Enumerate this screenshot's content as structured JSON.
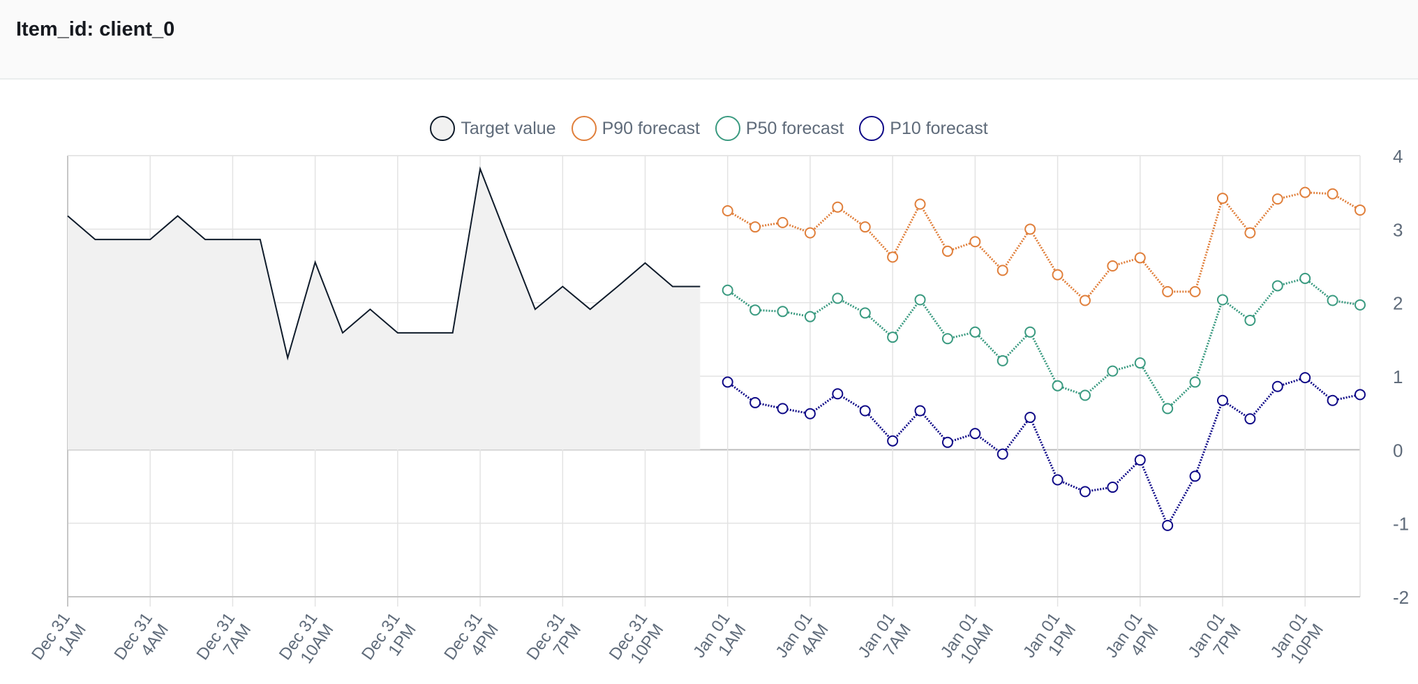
{
  "header": {
    "title": "Item_id: client_0"
  },
  "colors": {
    "target": "#0f1b2a",
    "target_fill": "#f1f1f1",
    "p90": "#e07f3b",
    "p50": "#3a9a80",
    "p10": "#0f0a87",
    "grid": "#e3e3e3",
    "axis": "#c6c6c6"
  },
  "chart_data": {
    "type": "line",
    "title": "",
    "xlabel": "",
    "ylabel": "",
    "ylim": [
      -2,
      4
    ],
    "yticks": [
      4,
      3,
      2,
      1,
      0,
      -1,
      -2
    ],
    "y_axis_position": "right",
    "grid": true,
    "legend_position": "top",
    "x_hours_start": "Dec 31 1AM",
    "xtick_labels": [
      [
        "Dec 31",
        "1AM"
      ],
      [
        "Dec 31",
        "4AM"
      ],
      [
        "Dec 31",
        "7AM"
      ],
      [
        "Dec 31",
        "10AM"
      ],
      [
        "Dec 31",
        "1PM"
      ],
      [
        "Dec 31",
        "4PM"
      ],
      [
        "Dec 31",
        "7PM"
      ],
      [
        "Dec 31",
        "10PM"
      ],
      [
        "Jan 01",
        "1AM"
      ],
      [
        "Jan 01",
        "4AM"
      ],
      [
        "Jan 01",
        "7AM"
      ],
      [
        "Jan 01",
        "10AM"
      ],
      [
        "Jan 01",
        "1PM"
      ],
      [
        "Jan 01",
        "4PM"
      ],
      [
        "Jan 01",
        "7PM"
      ],
      [
        "Jan 01",
        "10PM"
      ]
    ],
    "series": [
      {
        "name": "Target value",
        "style": "area",
        "start": "Dec 31 1AM",
        "values": [
          3.18,
          2.86,
          2.86,
          2.86,
          3.18,
          2.86,
          2.86,
          2.86,
          1.25,
          2.55,
          1.59,
          1.91,
          1.59,
          1.59,
          1.59,
          3.82,
          2.86,
          1.91,
          2.22,
          1.91,
          2.22,
          2.54,
          2.22,
          2.22
        ]
      },
      {
        "name": "P90 forecast",
        "style": "dotted",
        "start": "Jan 01 1AM",
        "values": [
          3.25,
          3.03,
          3.09,
          2.95,
          3.3,
          3.03,
          2.62,
          3.34,
          2.7,
          2.83,
          2.44,
          3.0,
          2.38,
          2.03,
          2.5,
          2.61,
          2.15,
          2.15,
          3.42,
          2.95,
          3.41,
          3.5,
          3.48,
          3.26
        ]
      },
      {
        "name": "P50 forecast",
        "style": "dotted",
        "start": "Jan 01 1AM",
        "values": [
          2.17,
          1.9,
          1.88,
          1.81,
          2.06,
          1.86,
          1.53,
          2.04,
          1.51,
          1.6,
          1.21,
          1.6,
          0.87,
          0.74,
          1.07,
          1.18,
          0.56,
          0.92,
          2.04,
          1.76,
          2.23,
          2.33,
          2.03,
          1.97
        ]
      },
      {
        "name": "P10 forecast",
        "style": "dotted",
        "start": "Jan 01 1AM",
        "values": [
          0.92,
          0.64,
          0.56,
          0.49,
          0.76,
          0.53,
          0.12,
          0.53,
          0.1,
          0.22,
          -0.06,
          0.44,
          -0.41,
          -0.57,
          -0.51,
          -0.14,
          -1.03,
          -0.36,
          0.67,
          0.42,
          0.86,
          0.98,
          0.67,
          0.75
        ]
      }
    ]
  }
}
